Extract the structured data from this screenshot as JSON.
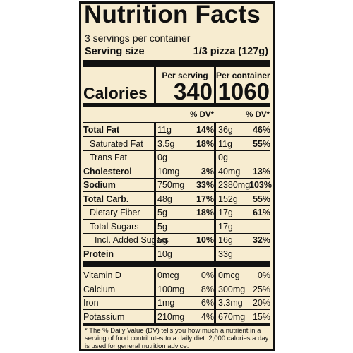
{
  "label": {
    "title": "Nutrition Facts",
    "servings": "3 servings per container",
    "serving_size_label": "Serving size",
    "serving_size_value": "1/3 pizza (127g)",
    "per_serving": "Per serving",
    "per_container": "Per container",
    "calories_label": "Calories",
    "calories_serving": "340",
    "calories_container": "1060",
    "dv_header": "% DV*",
    "footnote": "* The % Daily Value (DV) tells you how much a nutrient in a serving of food contributes to a daily diet. 2,000 calories a day is used for general nutrition advice."
  },
  "nutrients": [
    {
      "name": "Total Fat",
      "amt": "11g",
      "pct": "14%",
      "amt2": "36g",
      "pct2": "46%"
    },
    {
      "name": "Saturated Fat",
      "amt": "3.5g",
      "pct": "18%",
      "amt2": "11g",
      "pct2": "55%"
    },
    {
      "name": "Trans Fat",
      "amt": "0g",
      "pct": "",
      "amt2": "0g",
      "pct2": ""
    },
    {
      "name": "Cholesterol",
      "amt": "10mg",
      "pct": "3%",
      "amt2": "40mg",
      "pct2": "13%"
    },
    {
      "name": "Sodium",
      "amt": "750mg",
      "pct": "33%",
      "amt2": "2380mg",
      "pct2": "103%"
    },
    {
      "name": "Total Carb.",
      "amt": "48g",
      "pct": "17%",
      "amt2": "152g",
      "pct2": "55%"
    },
    {
      "name": "Dietary Fiber",
      "amt": "5g",
      "pct": "18%",
      "amt2": "17g",
      "pct2": "61%"
    },
    {
      "name": "Total Sugars",
      "amt": "5g",
      "pct": "",
      "amt2": "17g",
      "pct2": ""
    },
    {
      "name": "Incl. Added Sugars",
      "amt": "5g",
      "pct": "10%",
      "amt2": "16g",
      "pct2": "32%"
    },
    {
      "name": "Protein",
      "amt": "10g",
      "pct": "",
      "amt2": "33g",
      "pct2": ""
    }
  ],
  "vitamins": [
    {
      "name": "Vitamin D",
      "amt": "0mcg",
      "pct": "0%",
      "amt2": "0mcg",
      "pct2": "0%"
    },
    {
      "name": "Calcium",
      "amt": "100mg",
      "pct": "8%",
      "amt2": "300mg",
      "pct2": "25%"
    },
    {
      "name": "Iron",
      "amt": "1mg",
      "pct": "6%",
      "amt2": "3.3mg",
      "pct2": "20%"
    },
    {
      "name": "Potassium",
      "amt": "210mg",
      "pct": "4%",
      "amt2": "670mg",
      "pct2": "15%"
    }
  ]
}
